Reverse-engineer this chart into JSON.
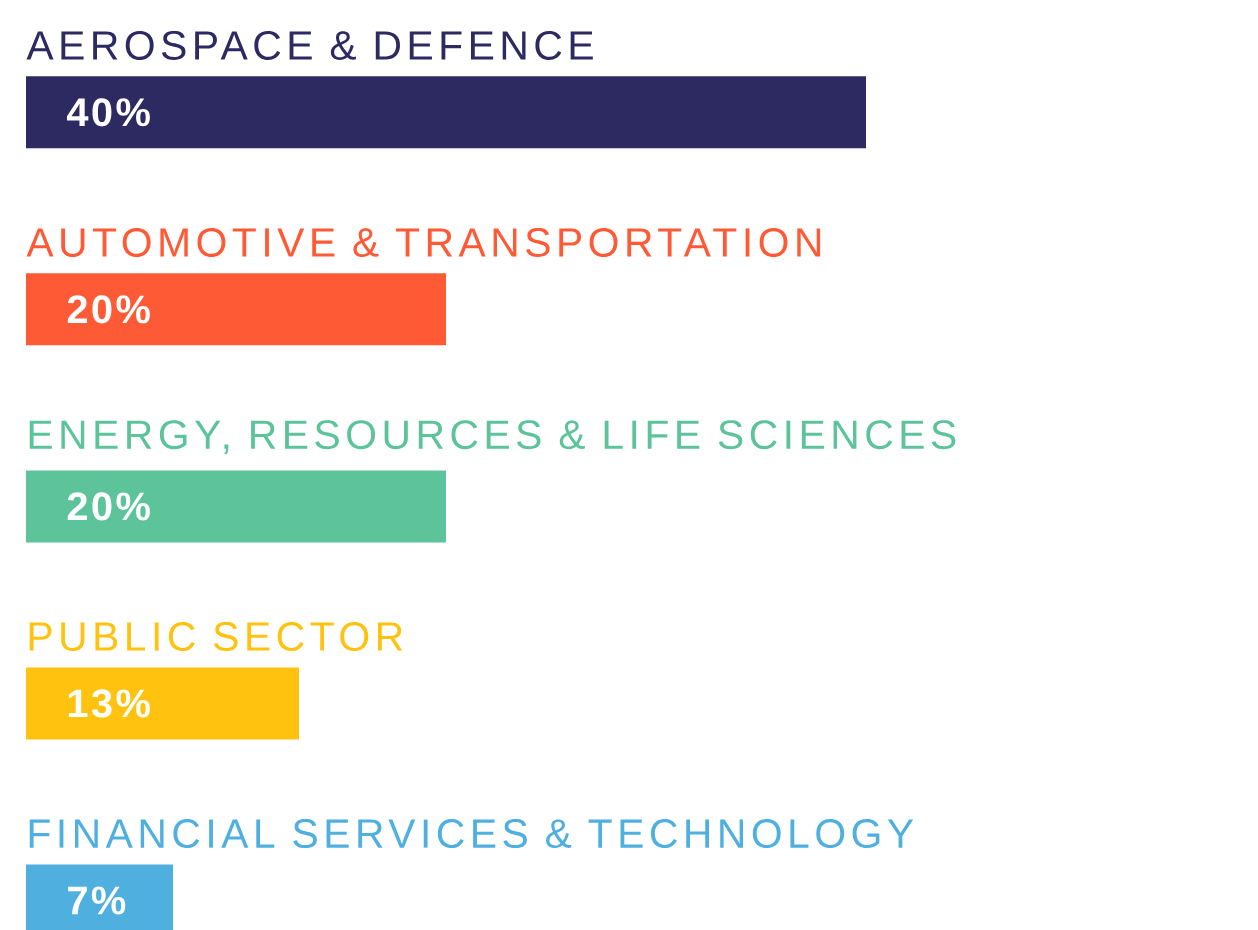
{
  "chart_data": {
    "type": "bar",
    "orientation": "horizontal",
    "tick_labels": false,
    "categories": [
      "AEROSPACE & DEFENCE",
      "AUTOMOTIVE & TRANSPORTATION",
      "ENERGY, RESOURCES & LIFE SCIENCES",
      "PUBLIC SECTOR",
      "FINANCIAL SERVICES & TECHNOLOGY"
    ],
    "values": [
      40,
      20,
      20,
      13,
      7
    ],
    "value_labels": [
      "40%",
      "20%",
      "20%",
      "13%",
      "7%"
    ],
    "colors": [
      "#2d2a62",
      "#ff5a36",
      "#5cc39a",
      "#ffc20e",
      "#4fb0e0"
    ]
  }
}
